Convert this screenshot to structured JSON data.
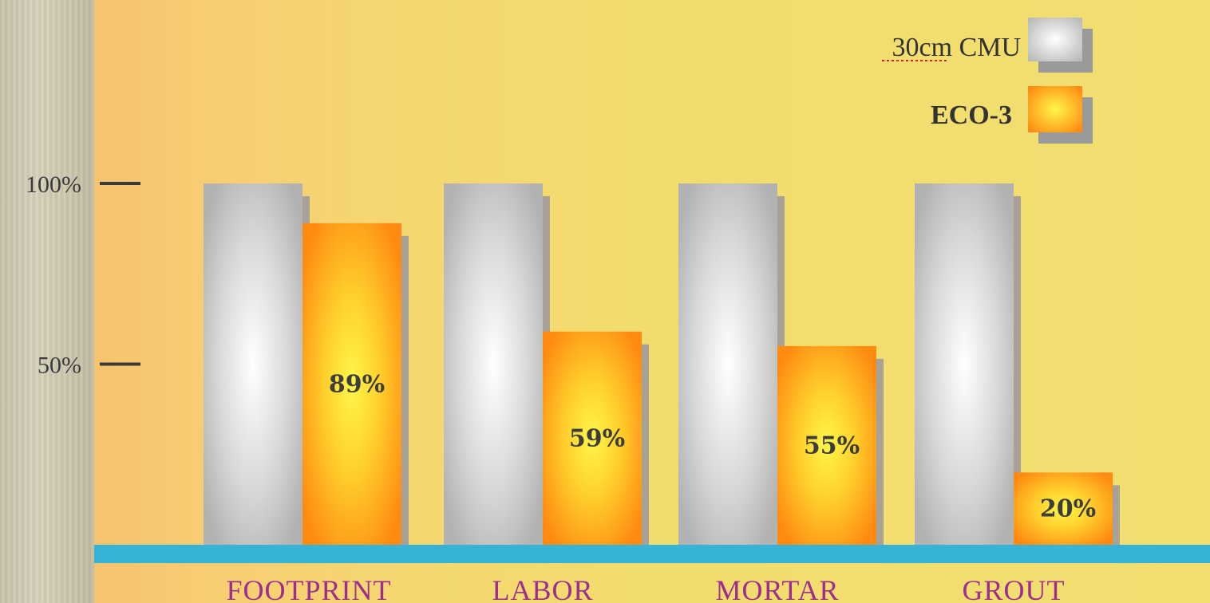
{
  "chart_data": {
    "type": "bar",
    "categories": [
      "FOOTPRINT",
      "LABOR",
      "MORTAR",
      "GROUT"
    ],
    "series": [
      {
        "name": "30cm CMU",
        "values": [
          100,
          100,
          100,
          100
        ],
        "color": "#bdbdbd"
      },
      {
        "name": "ECO-3",
        "values": [
          89,
          59,
          55,
          20
        ],
        "color": "#ff8c1a"
      }
    ],
    "data_labels": [
      "89%",
      "59%",
      "55%",
      "20%"
    ],
    "y_ticks": [
      {
        "value": 100,
        "label": "100%"
      },
      {
        "value": 50,
        "label": "50%"
      }
    ],
    "ylim": [
      0,
      100
    ],
    "legend_position": "top-right",
    "grid": false,
    "axis_color": "#36b3d6"
  }
}
